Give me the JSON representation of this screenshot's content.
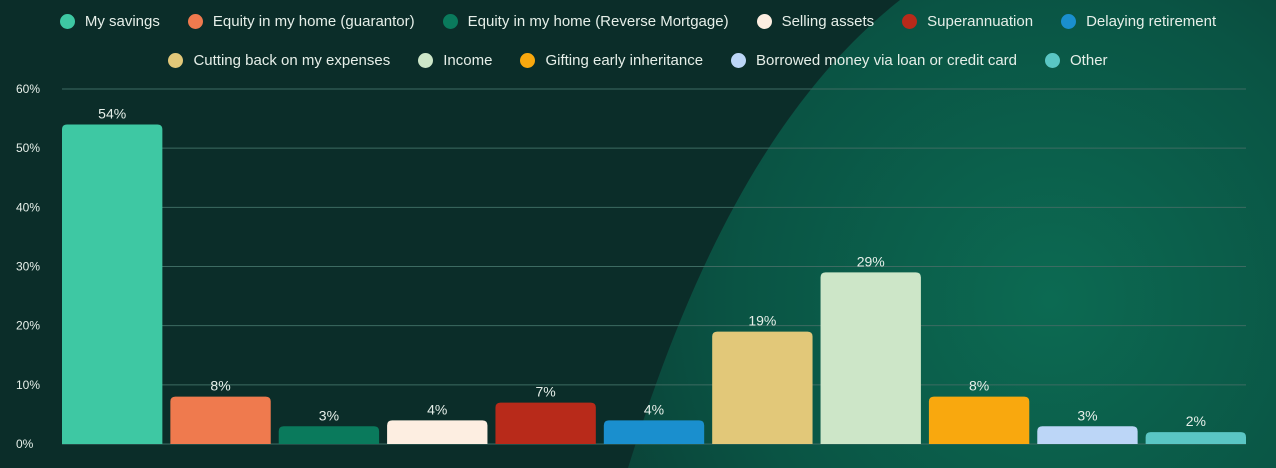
{
  "chart_data": {
    "type": "bar",
    "categories": [
      "My savings",
      "Equity in my home (guarantor)",
      "Equity in my home (Reverse Mortgage)",
      "Selling assets",
      "Superannuation",
      "Delaying retirement",
      "Cutting back on my expenses",
      "Income",
      "Gifting early inheritance",
      "Borrowed money via loan or credit card",
      "Other"
    ],
    "values": [
      54,
      8,
      3,
      4,
      7,
      4,
      19,
      29,
      8,
      3,
      2
    ],
    "value_labels": [
      "54%",
      "8%",
      "3%",
      "4%",
      "7%",
      "4%",
      "19%",
      "29%",
      "8%",
      "3%",
      "2%"
    ],
    "colors": [
      "#3ec8a3",
      "#ef7a4e",
      "#0a7a5c",
      "#fdeee1",
      "#b82a1a",
      "#1a8fce",
      "#e2c879",
      "#cde6c8",
      "#f9a80e",
      "#bcd6f7",
      "#5ac6c4"
    ],
    "ylim": [
      0,
      60
    ],
    "yticks": [
      "0%",
      "10%",
      "20%",
      "30%",
      "40%",
      "50%",
      "60%"
    ],
    "ytick_values": [
      0,
      10,
      20,
      30,
      40,
      50,
      60
    ],
    "grid": true,
    "legend_position": "top"
  },
  "legend": {
    "row1": [
      {
        "label": "My savings",
        "color": "#3ec8a3"
      },
      {
        "label": "Equity in my home (guarantor)",
        "color": "#ef7a4e"
      },
      {
        "label": "Equity in my home (Reverse Mortgage)",
        "color": "#0a7a5c"
      },
      {
        "label": "Selling assets",
        "color": "#fdeee1"
      },
      {
        "label": "Superannuation",
        "color": "#b82a1a"
      },
      {
        "label": "Delaying retirement",
        "color": "#1a8fce"
      }
    ],
    "row2": [
      {
        "label": "Cutting back on my expenses",
        "color": "#e2c879"
      },
      {
        "label": "Income",
        "color": "#cde6c8"
      },
      {
        "label": "Gifting early inheritance",
        "color": "#f9a80e"
      },
      {
        "label": "Borrowed money via loan or credit card",
        "color": "#bcd6f7"
      },
      {
        "label": "Other",
        "color": "#5ac6c4"
      }
    ]
  }
}
